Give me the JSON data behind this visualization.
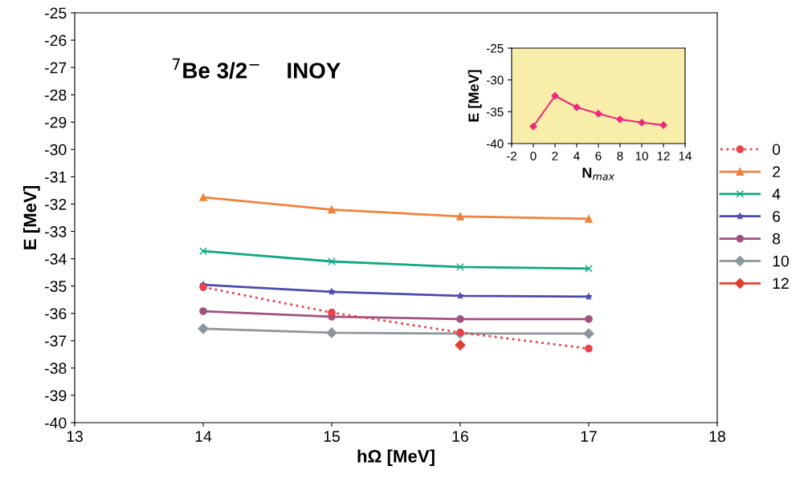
{
  "chart_data": [
    {
      "type": "line",
      "xlabel": "hΩ [MeV]",
      "ylabel": "E [MeV]",
      "annotations": [
        "$^{7}$Be 3/2$^{−}$    INOY"
      ],
      "x": [
        14,
        15,
        16,
        17
      ],
      "xlim": [
        13,
        18
      ],
      "xticks": [
        13,
        14,
        15,
        16,
        17,
        18
      ],
      "ylim": [
        -40,
        -25
      ],
      "yticks": [
        -40,
        -39,
        -38,
        -37,
        -36,
        -35,
        -34,
        -33,
        -32,
        -31,
        -30,
        -29,
        -28,
        -27,
        -26,
        -25
      ],
      "grid": false,
      "legend": "right",
      "series": [
        {
          "name": "0",
          "color": "#e8434a",
          "marker": "circle",
          "line_style": "dotted",
          "values": [
            -35.04,
            -35.97,
            -36.7,
            -37.29
          ]
        },
        {
          "name": "2",
          "color": "#f0823c",
          "marker": "triangle",
          "line_style": "solid",
          "values": [
            -31.75,
            -32.2,
            -32.45,
            -32.54
          ]
        },
        {
          "name": "4",
          "color": "#10a882",
          "marker": "cross",
          "line_style": "solid",
          "values": [
            -33.72,
            -34.1,
            -34.3,
            -34.36
          ]
        },
        {
          "name": "6",
          "color": "#4b4bb0",
          "marker": "star",
          "line_style": "solid",
          "values": [
            -34.95,
            -35.21,
            -35.36,
            -35.39
          ]
        },
        {
          "name": "8",
          "color": "#a0527e",
          "marker": "circle",
          "line_style": "solid",
          "values": [
            -35.92,
            -36.12,
            -36.21,
            -36.21
          ]
        },
        {
          "name": "10",
          "color": "#8c969c",
          "marker": "diamond",
          "line_style": "solid",
          "values": [
            -36.56,
            -36.71,
            -36.74,
            -36.74
          ]
        },
        {
          "name": "12",
          "color": "#e04030",
          "marker": "diamond",
          "line_style": "solid",
          "values": [
            null,
            null,
            -37.16,
            null
          ]
        }
      ]
    },
    {
      "type": "line",
      "xlabel": "N$_{max}$",
      "ylabel": "E [MeV]",
      "x": [
        0,
        2,
        4,
        6,
        8,
        10,
        12
      ],
      "xlim": [
        -2,
        14
      ],
      "xticks": [
        -2,
        0,
        2,
        4,
        6,
        8,
        10,
        12,
        14
      ],
      "ylim": [
        -40,
        -25
      ],
      "yticks": [
        -40,
        -35,
        -30,
        -25
      ],
      "grid": false,
      "marker": "diamond",
      "line_style": "solid",
      "series": [
        {
          "color": "#f0287c",
          "values": [
            -37.3,
            -32.5,
            -34.3,
            -35.3,
            -36.2,
            -36.7,
            -37.1
          ]
        }
      ]
    }
  ]
}
